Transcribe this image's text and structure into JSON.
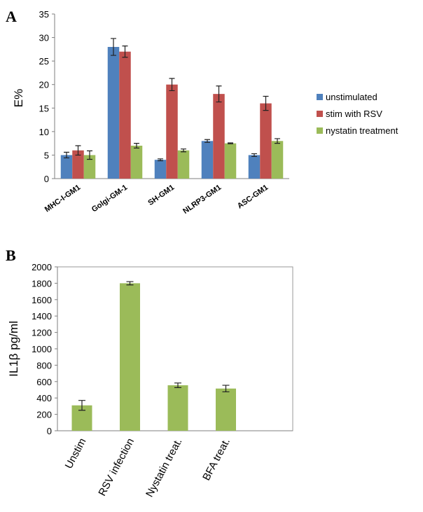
{
  "chart_data": [
    {
      "panel": "A",
      "type": "bar",
      "ylabel": "E%",
      "ylim": [
        0,
        35
      ],
      "yticks": [
        0,
        5,
        10,
        15,
        20,
        25,
        30,
        35
      ],
      "categories": [
        "MHC-I-GM1",
        "Golgi-GM-1",
        "SH-GM1",
        "NLRP3-GM1",
        "ASC-GM1"
      ],
      "legend_position": "right",
      "series": [
        {
          "name": "unstimulated",
          "color": "#4f81bd",
          "values": [
            5,
            28,
            4,
            8,
            5
          ],
          "errors": [
            0.6,
            1.8,
            0.2,
            0.3,
            0.3
          ]
        },
        {
          "name": "stim with RSV",
          "color": "#c0504d",
          "values": [
            6,
            27,
            20,
            18,
            16
          ],
          "errors": [
            1.0,
            1.2,
            1.3,
            1.7,
            1.5
          ]
        },
        {
          "name": "nystatin treatment",
          "color": "#9bbb59",
          "values": [
            5,
            7,
            6,
            7.5,
            8
          ],
          "errors": [
            0.9,
            0.5,
            0.3,
            0.1,
            0.5
          ]
        }
      ]
    },
    {
      "panel": "B",
      "type": "bar",
      "ylabel": "IL1β pg/ml",
      "ylim": [
        0,
        2000
      ],
      "yticks": [
        0,
        200,
        400,
        600,
        800,
        1000,
        1200,
        1400,
        1600,
        1800,
        2000
      ],
      "categories": [
        "Unstim",
        "RSV infection",
        "Nystatin treat.",
        "BFA  treat."
      ],
      "series": [
        {
          "color": "#9bbb59",
          "values": [
            310,
            1800,
            555,
            515
          ],
          "errors": [
            60,
            20,
            28,
            40
          ]
        }
      ]
    }
  ]
}
